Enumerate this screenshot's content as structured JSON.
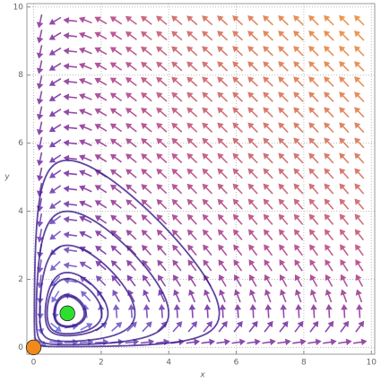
{
  "chart_data": {
    "type": "stream",
    "x_label": "x",
    "y_label": "y",
    "xlim": [
      -0.2,
      10.1
    ],
    "ylim": [
      -0.2,
      10.1
    ],
    "xticks": [
      0,
      2,
      4,
      6,
      8,
      10
    ],
    "yticks": [
      0,
      2,
      4,
      6,
      8,
      10
    ],
    "grid": true,
    "points": {
      "x": [
        0,
        1
      ],
      "y": [
        0,
        1
      ],
      "colors": [
        "#f08a1c",
        "#2ee02e"
      ]
    }
  }
}
